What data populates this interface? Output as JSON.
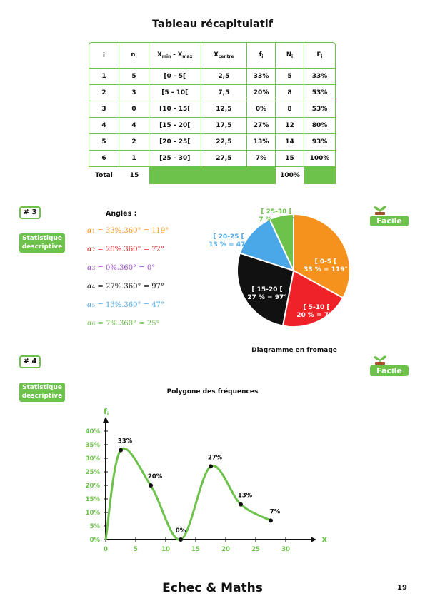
{
  "title": "Tableau récapitulatif",
  "table": {
    "headers": [
      {
        "main": "i",
        "sub": ""
      },
      {
        "main": "n",
        "sub": "i"
      },
      {
        "main": "X",
        "sub": "min",
        "mid": " - X",
        "sub2": "max"
      },
      {
        "main": "X",
        "sub": "centre"
      },
      {
        "main": "f",
        "sub": "i"
      },
      {
        "main": "N",
        "sub": "i"
      },
      {
        "main": "F",
        "sub": "i"
      }
    ],
    "rows": [
      [
        "1",
        "5",
        "[0 - 5[",
        "2,5",
        "33%",
        "5",
        "33%"
      ],
      [
        "2",
        "3",
        "[5 - 10[",
        "7,5",
        "20%",
        "8",
        "53%"
      ],
      [
        "3",
        "0",
        "[10 - 15[",
        "12,5",
        "0%",
        "8",
        "53%"
      ],
      [
        "4",
        "4",
        "[15 - 20[",
        "17,5",
        "27%",
        "12",
        "80%"
      ],
      [
        "5",
        "2",
        "[20 - 25[",
        "22,5",
        "13%",
        "14",
        "93%"
      ],
      [
        "6",
        "1",
        "[25 - 30]",
        "27,5",
        "7%",
        "15",
        "100%"
      ]
    ],
    "total": {
      "label": "Total",
      "n": "15",
      "f": "100%"
    }
  },
  "section3": {
    "number": "# 3",
    "category": [
      "Statistique",
      "descriptive"
    ],
    "difficulty": "Facile",
    "angles_title": "Angles :",
    "angles": [
      {
        "label": "α",
        "index": "1",
        "expr": " = 33%.360° = 119°",
        "color": "#f5921e"
      },
      {
        "label": "α",
        "index": "2",
        "expr": " = 20%.360° = 72°",
        "color": "#ee2227"
      },
      {
        "label": "α",
        "index": "3",
        "expr": " = 0%.360° = 0°",
        "color": "#9b4dca"
      },
      {
        "label": "α",
        "index": "4",
        "expr": " = 27%.360° = 97°",
        "color": "#111111"
      },
      {
        "label": "α",
        "index": "5",
        "expr": " = 13%.360° = 47°",
        "color": "#4aa8e8"
      },
      {
        "label": "α",
        "index": "6",
        "expr": " = 7%.360° = 25°",
        "color": "#6cc24a"
      }
    ],
    "pie_caption": "Diagramme en fromage"
  },
  "pie_data": {
    "type": "pie",
    "slices": [
      {
        "label": "[ 0-5 [",
        "value_label": "33 % = 119°",
        "degrees": 119,
        "color": "#f5921e"
      },
      {
        "label": "[ 5-10 [",
        "value_label": "20 % = 72°",
        "degrees": 72,
        "color": "#ee2227"
      },
      {
        "label": "[ 15-20 [",
        "value_label": "27 % = 97°",
        "degrees": 97,
        "color": "#111111"
      },
      {
        "label": "[ 20-25 [",
        "value_label": "13 % = 47°",
        "degrees": 47,
        "color": "#4aa8e8"
      },
      {
        "label": "[ 25-30 [",
        "value_label": "7 % = 25°",
        "degrees": 25,
        "color": "#6cc24a"
      }
    ]
  },
  "section4": {
    "number": "# 4",
    "category": [
      "Statistique",
      "descriptive"
    ],
    "difficulty": "Facile"
  },
  "chart_data": {
    "type": "line",
    "title": "Polygone des fréquences",
    "ylabel": "f",
    "ylabel_sub": "i",
    "xlabel": "X",
    "x": [
      2.5,
      7.5,
      12.5,
      17.5,
      22.5,
      27.5
    ],
    "values": [
      33,
      20,
      0,
      27,
      13,
      7
    ],
    "point_labels": [
      "33%",
      "20%",
      "0%",
      "27%",
      "13%",
      "7%"
    ],
    "xlim": [
      0,
      30
    ],
    "ylim": [
      0,
      40
    ],
    "xticks": [
      "0",
      "5",
      "10",
      "15",
      "20",
      "25",
      "30"
    ],
    "yticks": [
      "0%",
      "5%",
      "10%",
      "15%",
      "20%",
      "25%",
      "30%",
      "35%",
      "40%"
    ],
    "color": "#6cc24a"
  },
  "footer": "Echec & Maths",
  "page_number": "19"
}
